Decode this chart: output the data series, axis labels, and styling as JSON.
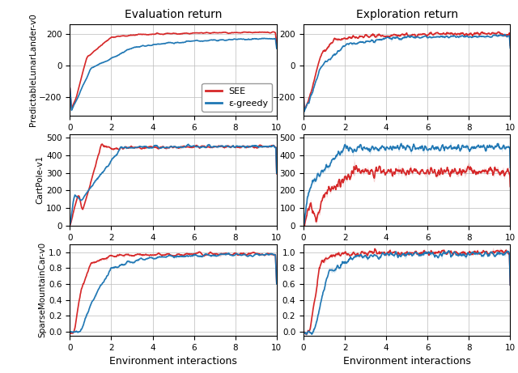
{
  "col_titles": [
    "Evaluation return",
    "Exploration return"
  ],
  "row_labels": [
    "PredictableLunarLander-v0",
    "CartPole-v1",
    "SparseMountainCar-v0"
  ],
  "xlabel": "Environment interactions",
  "legend_labels": [
    "SEE",
    "ε-greedy"
  ],
  "colors": {
    "SEE": "#d62728",
    "eps": "#1f77b4"
  },
  "x_ticks": [
    0,
    2,
    4,
    6,
    8,
    10
  ],
  "x_max": 10,
  "n_points": 500,
  "seed": 42,
  "ylims": [
    [
      [
        -320,
        260
      ],
      [
        -320,
        260
      ]
    ],
    [
      [
        0,
        520
      ],
      [
        0,
        520
      ]
    ],
    [
      [
        -0.05,
        1.1
      ],
      [
        -0.05,
        1.1
      ]
    ]
  ],
  "yticks": [
    [
      [
        -200,
        0,
        200
      ],
      [
        -200,
        0,
        200
      ]
    ],
    [
      [
        0,
        100,
        200,
        300,
        400,
        500
      ],
      [
        0,
        100,
        200,
        300,
        400,
        500
      ]
    ],
    [
      [
        0.0,
        0.2,
        0.4,
        0.6,
        0.8,
        1.0
      ],
      [
        0.0,
        0.2,
        0.4,
        0.6,
        0.8,
        1.0
      ]
    ]
  ]
}
